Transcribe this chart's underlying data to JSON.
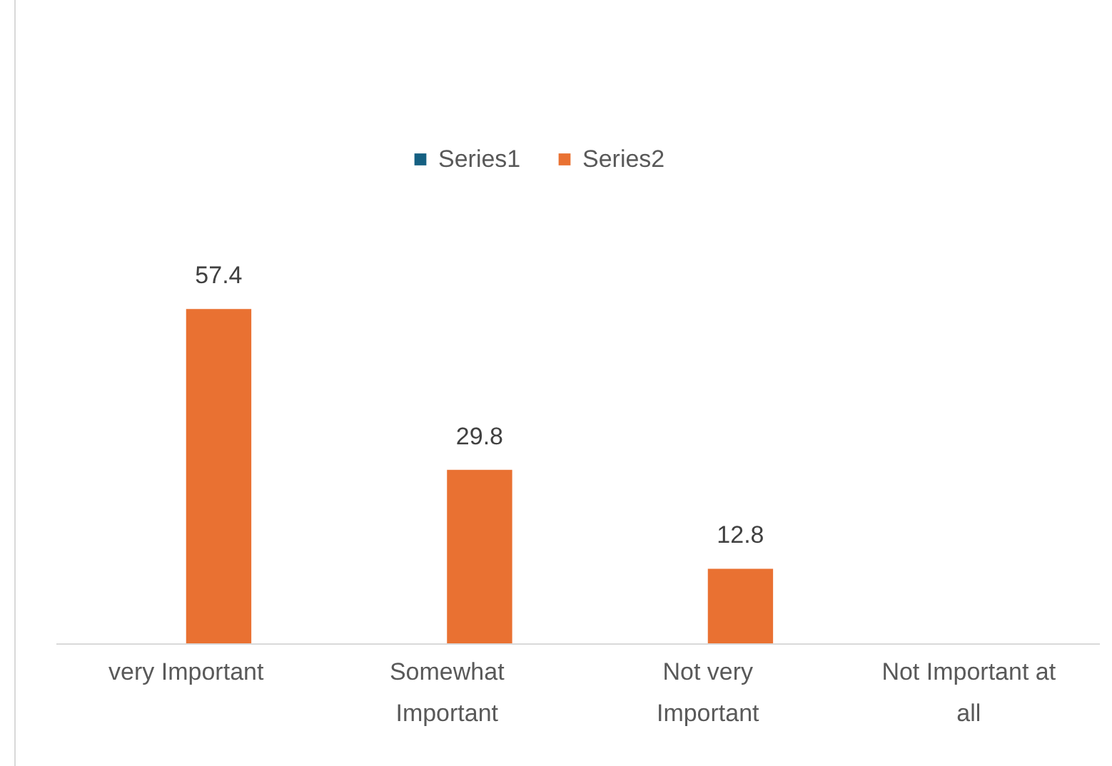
{
  "chart_data": {
    "type": "bar",
    "categories": [
      "very Important",
      "Somewhat Important",
      "Not very Important",
      "Not Important at all"
    ],
    "series": [
      {
        "name": "Series1",
        "color": "#156082",
        "values": [
          null,
          null,
          null,
          null
        ]
      },
      {
        "name": "Series2",
        "color": "#e97132",
        "values": [
          57.4,
          29.8,
          12.8,
          null
        ]
      }
    ],
    "data_labels": true,
    "legend": "top",
    "grid": false
  }
}
